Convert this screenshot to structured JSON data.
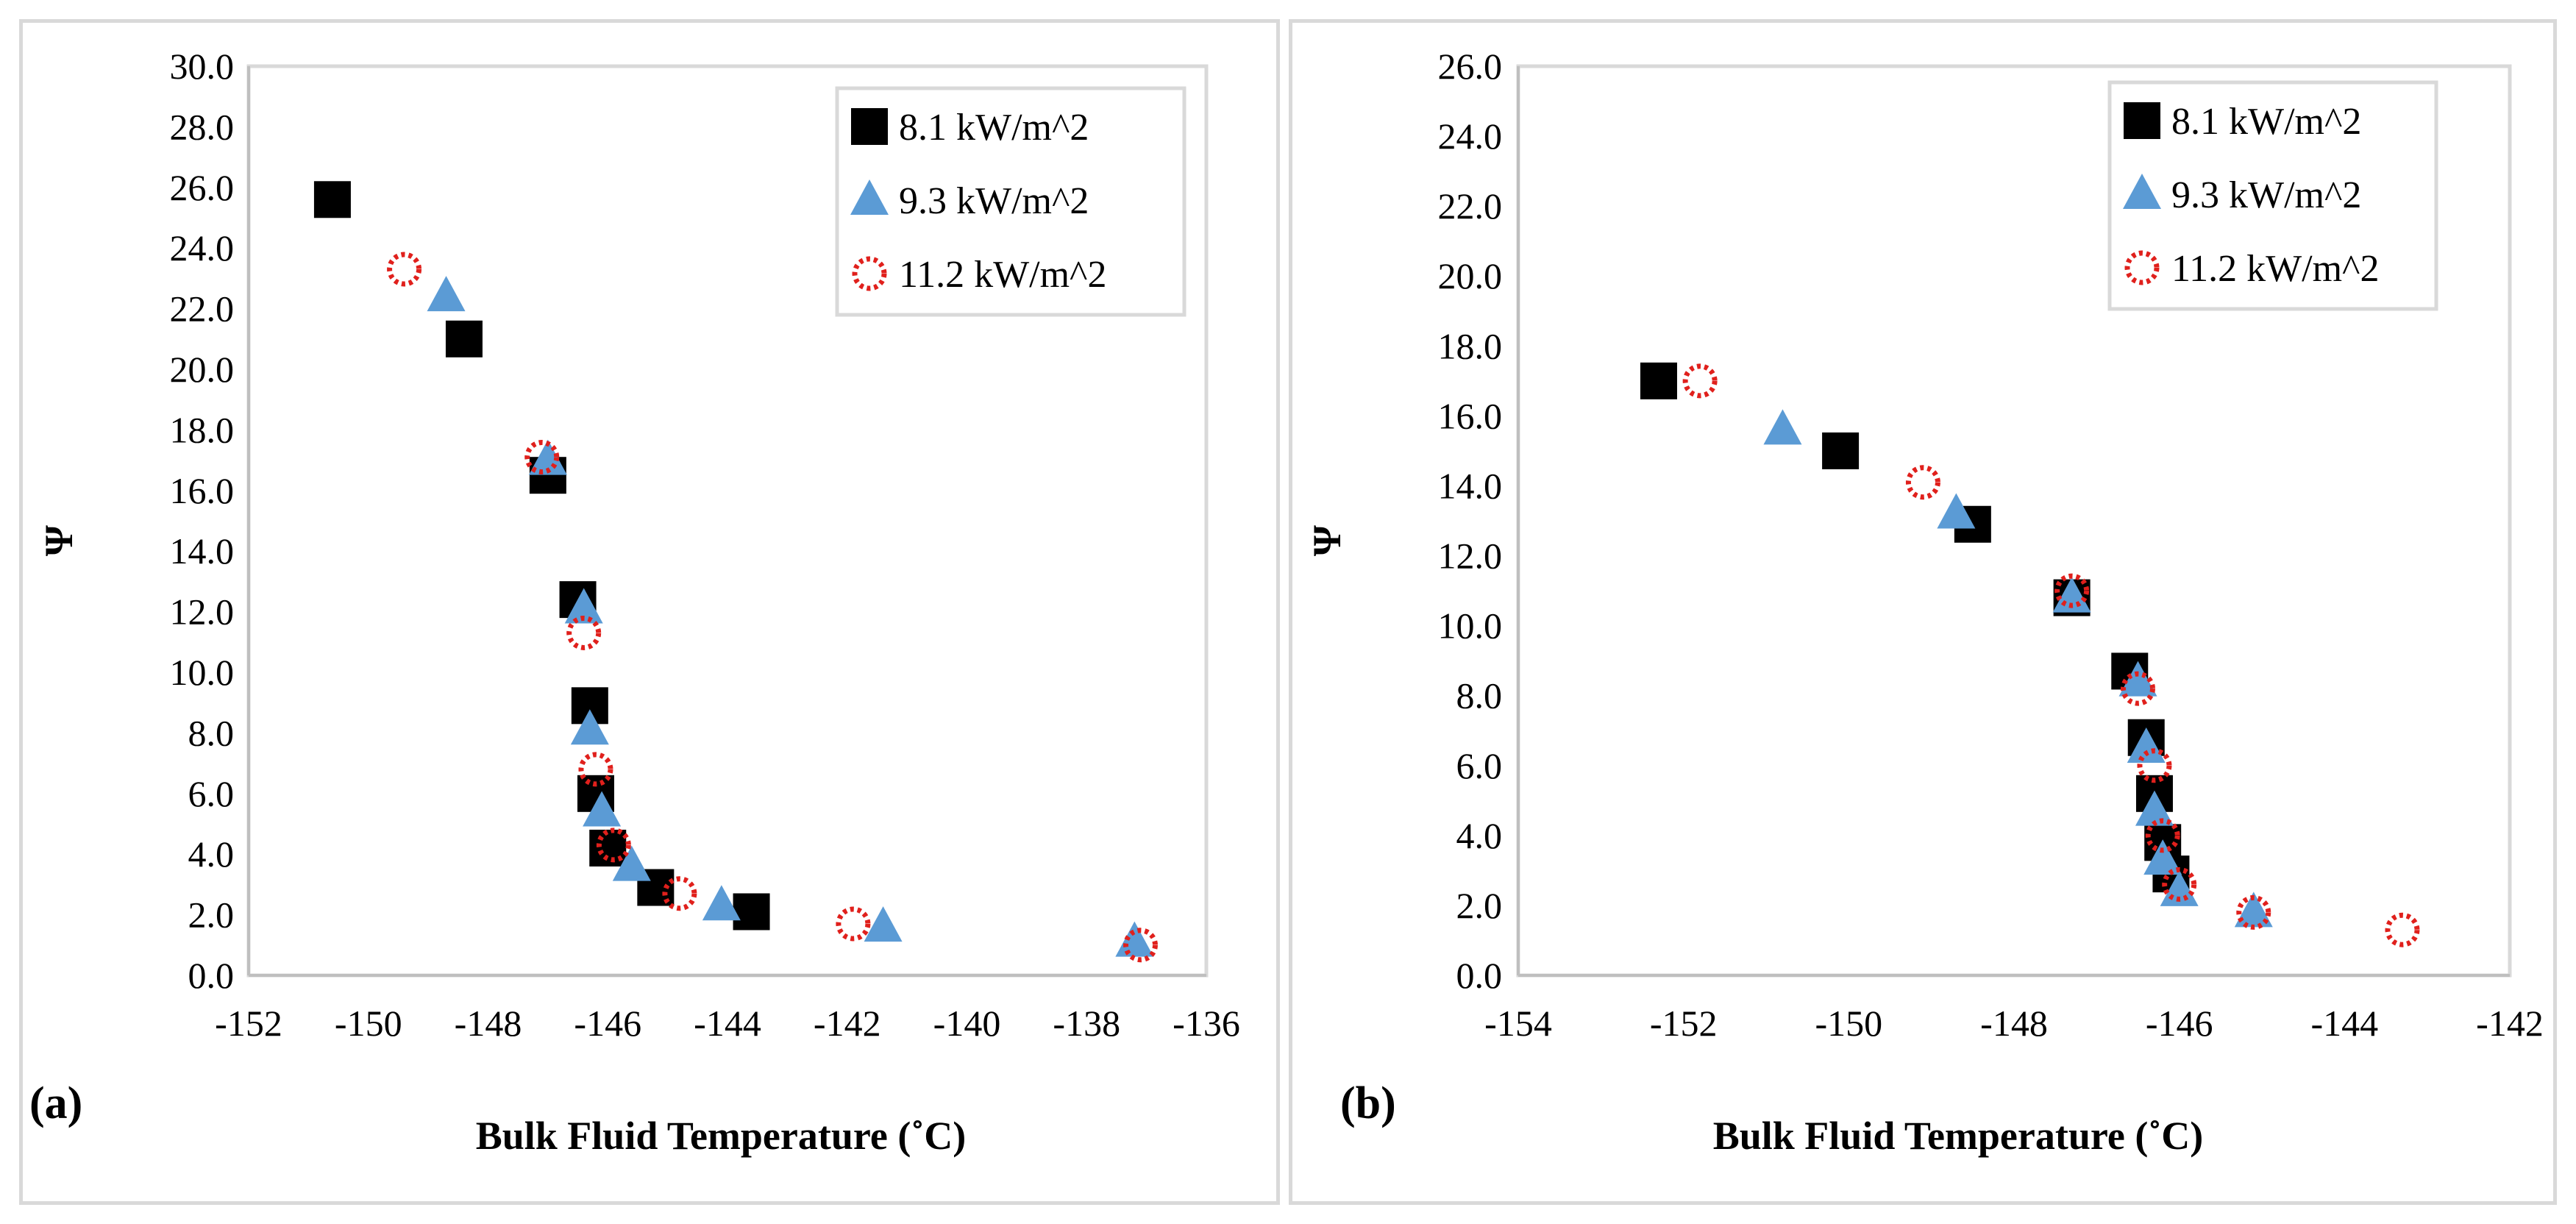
{
  "chart_data": [
    {
      "type": "scatter",
      "panel_label": "(a)",
      "xlabel": "Bulk Fluid Temperature (˚C)",
      "ylabel": "Ψ",
      "xlim": [
        -152,
        -136
      ],
      "ylim": [
        0,
        30
      ],
      "x_ticks": [
        -152,
        -150,
        -148,
        -146,
        -144,
        -142,
        -140,
        -138,
        -136
      ],
      "y_ticks": [
        0,
        2,
        4,
        6,
        8,
        10,
        12,
        14,
        16,
        18,
        20,
        22,
        24,
        26,
        28,
        30
      ],
      "x_tick_labels": [
        "-152",
        "-150",
        "-148",
        "-146",
        "-144",
        "-142",
        "-140",
        "-138",
        "-136"
      ],
      "y_tick_labels": [
        "0.0",
        "2.0",
        "4.0",
        "6.0",
        "8.0",
        "10.0",
        "12.0",
        "14.0",
        "16.0",
        "18.0",
        "20.0",
        "22.0",
        "24.0",
        "26.0",
        "28.0",
        "30.0"
      ],
      "legend_position": "top-right",
      "series": [
        {
          "name": "8.1 kW/m^2",
          "marker": "square",
          "color": "#000000",
          "points": [
            [
              -150.6,
              25.6
            ],
            [
              -148.4,
              21.0
            ],
            [
              -147.0,
              16.5
            ],
            [
              -146.5,
              12.4
            ],
            [
              -146.3,
              8.9
            ],
            [
              -146.2,
              6.0
            ],
            [
              -146.0,
              4.2
            ],
            [
              -145.2,
              2.9
            ],
            [
              -143.6,
              2.1
            ]
          ]
        },
        {
          "name": "9.3 kW/m^2",
          "marker": "triangle",
          "color": "#5b9bd5",
          "points": [
            [
              -148.7,
              22.4
            ],
            [
              -147.0,
              17.0
            ],
            [
              -146.4,
              12.1
            ],
            [
              -146.3,
              8.1
            ],
            [
              -146.1,
              5.4
            ],
            [
              -145.6,
              3.6
            ],
            [
              -144.1,
              2.3
            ],
            [
              -141.4,
              1.6
            ],
            [
              -137.2,
              1.1
            ]
          ]
        },
        {
          "name": "11.2 kW/m^2",
          "marker": "circle-dotted",
          "color": "#e0201c",
          "points": [
            [
              -149.4,
              23.3
            ],
            [
              -147.1,
              17.1
            ],
            [
              -146.4,
              11.3
            ],
            [
              -146.2,
              6.8
            ],
            [
              -145.9,
              4.3
            ],
            [
              -144.8,
              2.7
            ],
            [
              -141.9,
              1.7
            ],
            [
              -137.1,
              1.0
            ]
          ]
        }
      ]
    },
    {
      "type": "scatter",
      "panel_label": "(b)",
      "xlabel": "Bulk Fluid Temperature (˚C)",
      "ylabel": "Ψ",
      "xlim": [
        -154,
        -142
      ],
      "ylim": [
        0,
        26
      ],
      "x_ticks": [
        -154,
        -152,
        -150,
        -148,
        -146,
        -144,
        -142
      ],
      "y_ticks": [
        0,
        2,
        4,
        6,
        8,
        10,
        12,
        14,
        16,
        18,
        20,
        22,
        24,
        26
      ],
      "x_tick_labels": [
        "-154",
        "-152",
        "-150",
        "-148",
        "-146",
        "-144",
        "-142"
      ],
      "y_tick_labels": [
        "0.0",
        "2.0",
        "4.0",
        "6.0",
        "8.0",
        "10.0",
        "12.0",
        "14.0",
        "16.0",
        "18.0",
        "20.0",
        "22.0",
        "24.0",
        "26.0"
      ],
      "legend_position": "top-right",
      "series": [
        {
          "name": "8.1 kW/m^2",
          "marker": "square",
          "color": "#000000",
          "points": [
            [
              -152.3,
              17.0
            ],
            [
              -150.1,
              15.0
            ],
            [
              -148.5,
              12.9
            ],
            [
              -147.3,
              10.8
            ],
            [
              -146.6,
              8.7
            ],
            [
              -146.4,
              6.8
            ],
            [
              -146.3,
              5.2
            ],
            [
              -146.2,
              3.8
            ],
            [
              -146.1,
              2.9
            ]
          ]
        },
        {
          "name": "9.3 kW/m^2",
          "marker": "triangle",
          "color": "#5b9bd5",
          "points": [
            [
              -150.8,
              15.6
            ],
            [
              -148.7,
              13.2
            ],
            [
              -147.3,
              10.8
            ],
            [
              -146.5,
              8.4
            ],
            [
              -146.4,
              6.5
            ],
            [
              -146.3,
              4.7
            ],
            [
              -146.2,
              3.3
            ],
            [
              -146.0,
              2.4
            ],
            [
              -145.1,
              1.8
            ]
          ]
        },
        {
          "name": "11.2 kW/m^2",
          "marker": "circle-dotted",
          "color": "#e0201c",
          "points": [
            [
              -151.8,
              17.0
            ],
            [
              -149.1,
              14.1
            ],
            [
              -147.3,
              11.0
            ],
            [
              -146.5,
              8.2
            ],
            [
              -146.3,
              6.0
            ],
            [
              -146.2,
              4.0
            ],
            [
              -146.0,
              2.6
            ],
            [
              -145.1,
              1.8
            ],
            [
              -143.3,
              1.3
            ]
          ]
        }
      ]
    }
  ]
}
